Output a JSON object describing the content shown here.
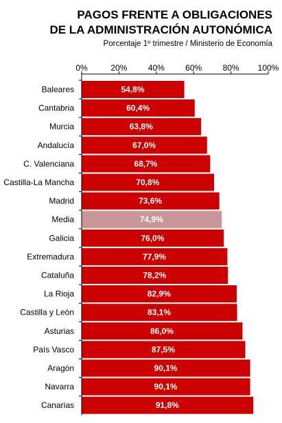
{
  "title_line1": "PAGOS FRENTE A OBLIGACIONES",
  "title_line2": "DE LA ADMINISTRACIÓN AUTONÓMICA",
  "subtitle": "Porcentaje 1º trimestre / Ministerio de Economía",
  "colors": {
    "bar": "#cc0000",
    "highlight": "#c99698",
    "axis": "#000000"
  },
  "chart_data": {
    "type": "bar",
    "orientation": "horizontal",
    "title": "PAGOS FRENTE A OBLIGACIONES DE LA ADMINISTRACIÓN AUTONÓMICA",
    "subtitle": "Porcentaje 1º trimestre / Ministerio de Economía",
    "categories": [
      "Baleares",
      "Cantabria",
      "Murcia",
      "Andalucía",
      "C. Valenciana",
      "Castilla-La Mancha",
      "Madrid",
      "Media",
      "Galicia",
      "Extremadura",
      "Cataluña",
      "La Rioja",
      "Castilla y León",
      "Asturias",
      "País Vasco",
      "Aragón",
      "Navarra",
      "Canarias"
    ],
    "values": [
      54.8,
      60.4,
      63.8,
      67.0,
      68.7,
      70.8,
      73.6,
      74.9,
      76.0,
      77.9,
      78.2,
      82.9,
      83.1,
      86.0,
      87.5,
      90.1,
      90.1,
      91.8
    ],
    "labels": [
      "54,8%",
      "60,4%",
      "63,8%",
      "67,0%",
      "68,7%",
      "70,8%",
      "73,6%",
      "74,9%",
      "76,0%",
      "77,9%",
      "78,2%",
      "82,9%",
      "83,1%",
      "86,0%",
      "87,5%",
      "90,1%",
      "90,1%",
      "91,8%"
    ],
    "highlight": "Media",
    "xlim": [
      0,
      100
    ],
    "xticks": [
      "0%",
      "20%",
      "40%",
      "60%",
      "80%",
      "100%"
    ],
    "xtick_values": [
      0,
      20,
      40,
      60,
      80,
      100
    ],
    "axis_position": "top",
    "grid": false,
    "legend": "none"
  }
}
